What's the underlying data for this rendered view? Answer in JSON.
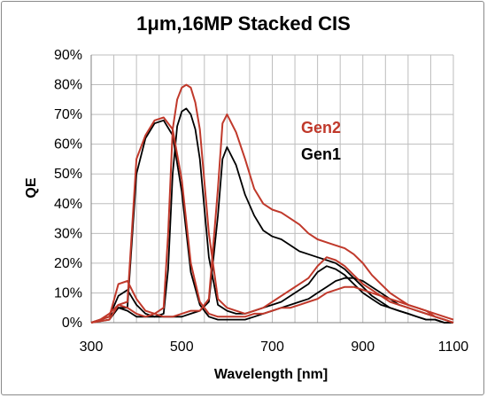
{
  "chart_data": {
    "type": "line",
    "title": "1μm,16MP Stacked CIS",
    "xlabel": "Wavelength [nm]",
    "ylabel": "QE",
    "xlim": [
      300,
      1100
    ],
    "ylim": [
      0,
      90
    ],
    "xticks": [
      "300",
      "500",
      "700",
      "900",
      "1100"
    ],
    "yticks": [
      "0%",
      "10%",
      "20%",
      "30%",
      "40%",
      "50%",
      "60%",
      "70%",
      "80%",
      "90%"
    ],
    "grid": "vertical and horizontal",
    "legend_position": "right",
    "colors": {
      "Gen2": "#c0392b",
      "Gen1": "#000000"
    },
    "series": [
      {
        "name": "Gen2",
        "channel": "blue",
        "x": [
          300,
          320,
          340,
          360,
          380,
          400,
          420,
          440,
          460,
          480,
          500,
          520,
          540,
          560,
          580,
          600,
          620,
          640,
          660,
          680,
          700,
          720,
          740,
          760,
          780,
          800,
          820,
          840,
          860,
          880,
          900,
          920,
          940,
          960,
          980,
          1000,
          1020,
          1040,
          1060,
          1080,
          1100
        ],
        "y": [
          0,
          1,
          3,
          6,
          7,
          55,
          63,
          68,
          69,
          65,
          48,
          20,
          7,
          3,
          2,
          2,
          2,
          2,
          3,
          3,
          4,
          5,
          5,
          6,
          7,
          8,
          10,
          11,
          12,
          12,
          11,
          10,
          9,
          8,
          7,
          6,
          5,
          4,
          3,
          2,
          1
        ]
      },
      {
        "name": "Gen2",
        "channel": "green",
        "x": [
          300,
          340,
          360,
          380,
          400,
          420,
          440,
          460,
          470,
          480,
          490,
          500,
          510,
          520,
          530,
          540,
          560,
          580,
          600,
          620,
          640,
          660,
          680,
          700,
          720,
          740,
          760,
          780,
          800,
          820,
          840,
          860,
          880,
          900,
          920,
          940,
          960,
          980,
          1000,
          1020,
          1040,
          1060,
          1080,
          1100
        ],
        "y": [
          0,
          1,
          6,
          5,
          3,
          2,
          3,
          5,
          30,
          65,
          75,
          79,
          80,
          79,
          74,
          65,
          30,
          8,
          5,
          4,
          3,
          4,
          5,
          7,
          9,
          11,
          13,
          15,
          19,
          22,
          21,
          19,
          16,
          13,
          11,
          9,
          7,
          6,
          5,
          4,
          3,
          2,
          1,
          0
        ]
      },
      {
        "name": "Gen2",
        "channel": "red",
        "x": [
          300,
          340,
          360,
          380,
          400,
          420,
          440,
          460,
          480,
          500,
          520,
          540,
          560,
          580,
          590,
          600,
          620,
          640,
          660,
          680,
          700,
          720,
          740,
          760,
          780,
          800,
          820,
          840,
          860,
          880,
          900,
          920,
          940,
          960,
          980,
          1000,
          1020,
          1040,
          1060,
          1080,
          1100
        ],
        "y": [
          0,
          2,
          13,
          14,
          8,
          4,
          3,
          2,
          2,
          3,
          4,
          4,
          8,
          45,
          67,
          70,
          64,
          55,
          45,
          40,
          38,
          37,
          35,
          33,
          30,
          28,
          27,
          26,
          25,
          23,
          20,
          16,
          13,
          10,
          8,
          6,
          5,
          4,
          2,
          1,
          0
        ]
      },
      {
        "name": "Gen1",
        "channel": "blue",
        "x": [
          300,
          320,
          340,
          360,
          380,
          400,
          420,
          440,
          460,
          480,
          500,
          520,
          540,
          560,
          580,
          600,
          620,
          640,
          660,
          680,
          700,
          720,
          740,
          760,
          780,
          800,
          820,
          840,
          860,
          880,
          900,
          920,
          940,
          960,
          980,
          1000,
          1020,
          1040,
          1060,
          1080,
          1100
        ],
        "y": [
          0,
          1,
          2,
          5,
          5,
          50,
          62,
          67,
          68,
          63,
          44,
          17,
          6,
          2,
          1,
          1,
          1,
          1,
          2,
          3,
          4,
          5,
          6,
          7,
          8,
          10,
          12,
          14,
          15,
          15,
          14,
          12,
          10,
          8,
          6,
          5,
          4,
          3,
          2,
          1,
          0
        ]
      },
      {
        "name": "Gen1",
        "channel": "green",
        "x": [
          300,
          340,
          360,
          380,
          400,
          420,
          440,
          460,
          470,
          480,
          490,
          500,
          510,
          520,
          530,
          540,
          560,
          580,
          600,
          620,
          640,
          660,
          680,
          700,
          720,
          740,
          760,
          780,
          800,
          820,
          840,
          860,
          880,
          900,
          920,
          940,
          960,
          980,
          1000,
          1020,
          1040,
          1060,
          1080,
          1100
        ],
        "y": [
          0,
          1,
          5,
          4,
          2,
          2,
          2,
          3,
          18,
          50,
          66,
          71,
          72,
          70,
          65,
          55,
          22,
          6,
          4,
          3,
          3,
          4,
          5,
          6,
          7,
          9,
          11,
          13,
          17,
          19,
          18,
          16,
          13,
          10,
          8,
          6,
          5,
          4,
          3,
          2,
          1,
          1,
          0,
          0
        ]
      },
      {
        "name": "Gen1",
        "channel": "red",
        "x": [
          300,
          340,
          360,
          380,
          400,
          420,
          440,
          460,
          480,
          500,
          520,
          540,
          560,
          580,
          590,
          600,
          620,
          640,
          660,
          680,
          700,
          720,
          740,
          760,
          780,
          800,
          820,
          840,
          860,
          880,
          900,
          920,
          940,
          960,
          980,
          1000,
          1020,
          1040,
          1060,
          1080,
          1100
        ],
        "y": [
          0,
          2,
          9,
          11,
          6,
          3,
          2,
          2,
          2,
          2,
          3,
          4,
          7,
          36,
          55,
          59,
          53,
          43,
          36,
          31,
          29,
          28,
          26,
          24,
          23,
          22,
          21,
          20,
          18,
          15,
          12,
          9,
          7,
          5,
          4,
          3,
          2,
          1,
          1,
          0,
          0
        ]
      }
    ]
  }
}
